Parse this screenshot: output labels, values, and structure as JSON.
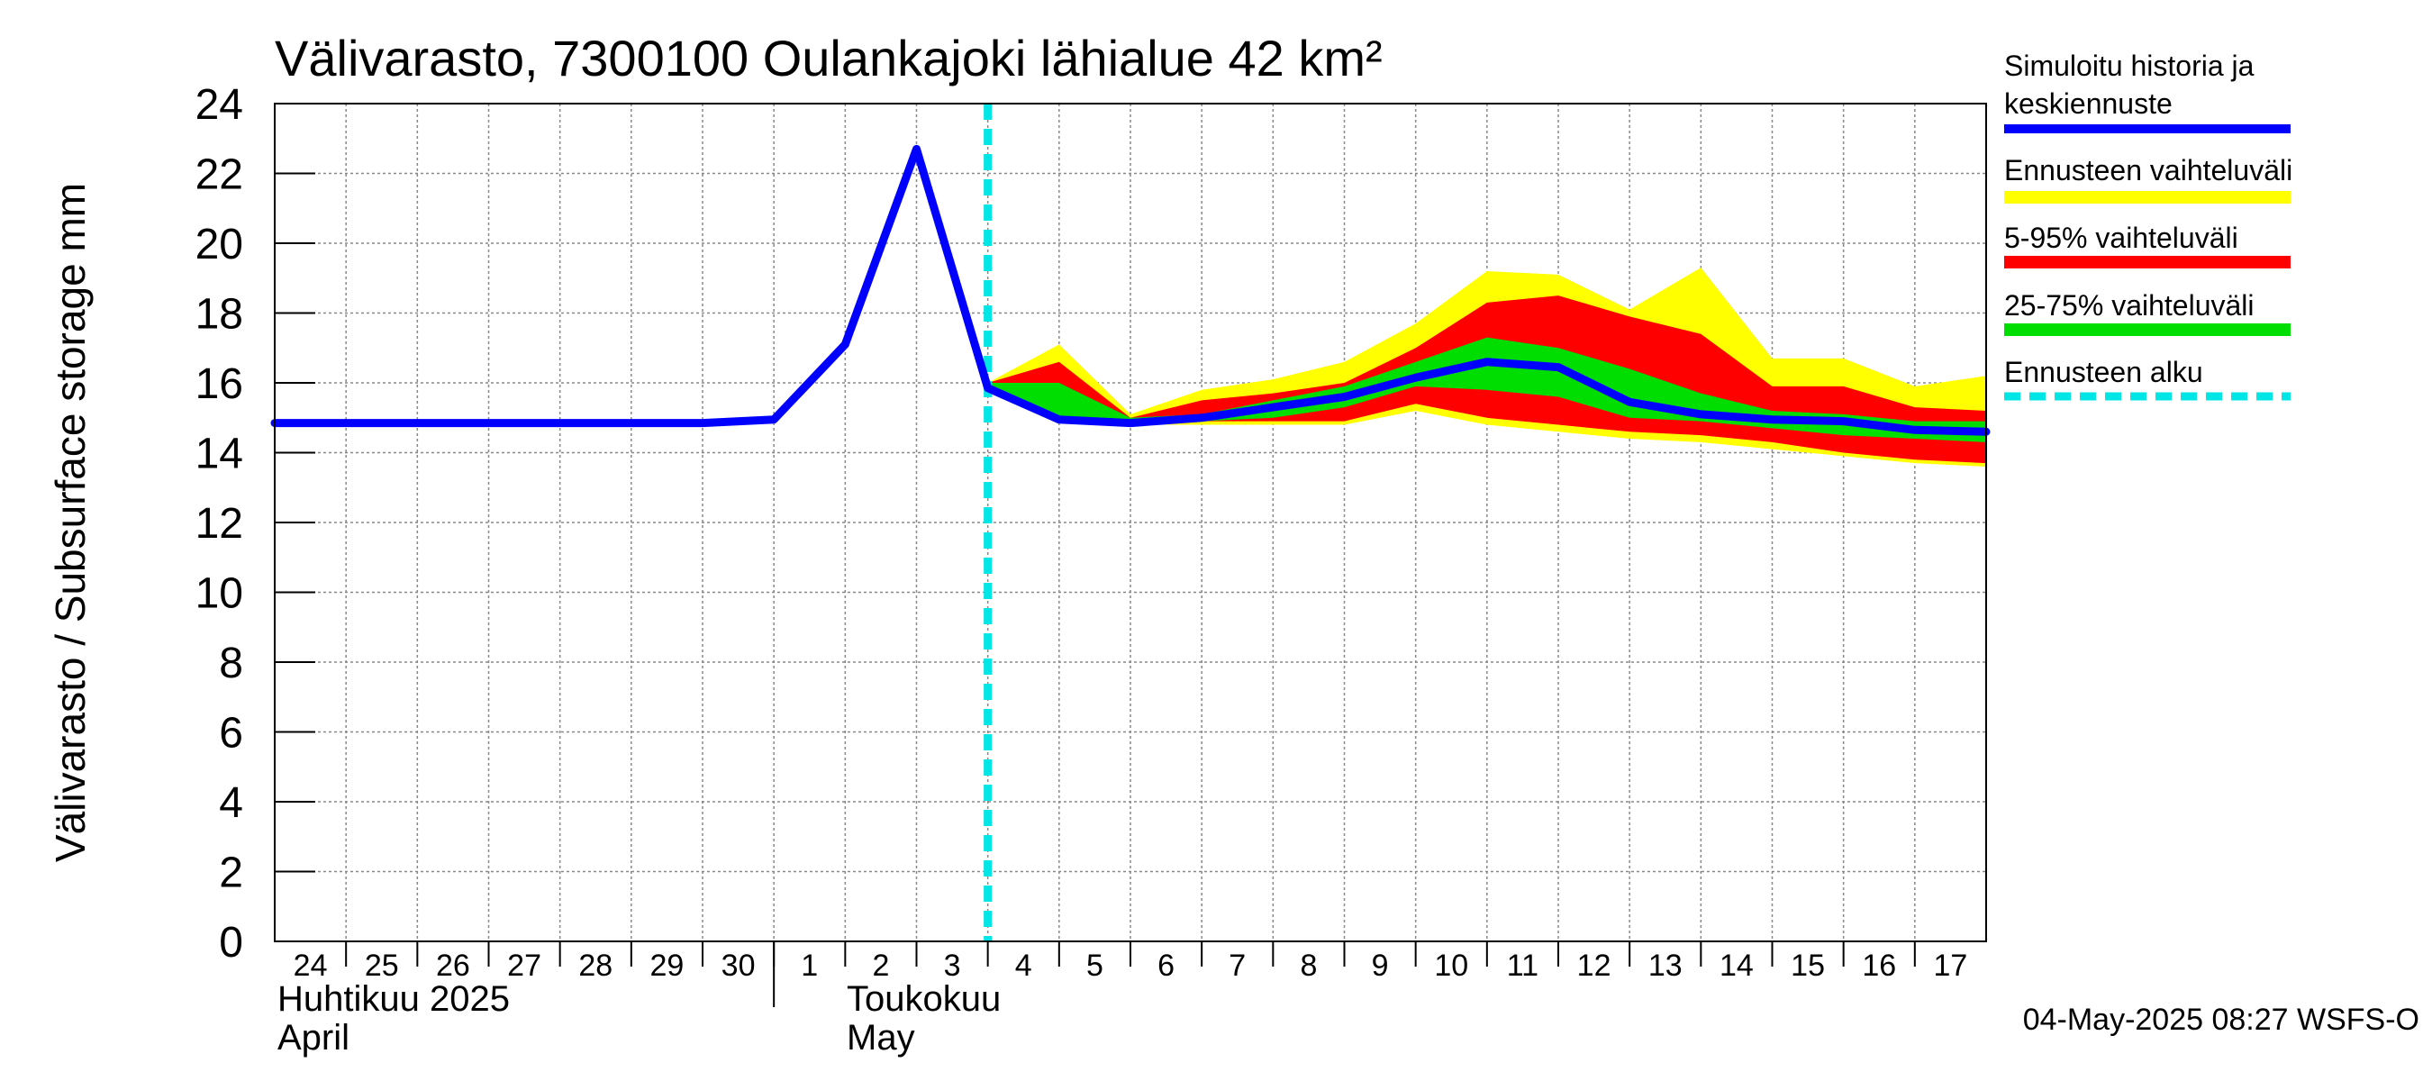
{
  "title": "Välivarasto, 7300100 Oulankajoki lähialue 42 km²",
  "timestamp": "04-May-2025 08:27 WSFS-O",
  "colors": {
    "simulated": "#0000ff",
    "full_range": "#ffff00",
    "p5_95": "#ff0000",
    "p25_75": "#00dd00",
    "forecast_start": "#00e5e5",
    "grid": "#888888"
  },
  "legend": {
    "simulated": [
      "Simuloitu historia ja",
      "keskiennuste"
    ],
    "full_range": "Ennusteen vaihteluväli",
    "p5_95": "5-95% vaihteluväli",
    "p25_75": "25-75% vaihteluväli",
    "forecast_start": "Ennusteen alku"
  },
  "x_axis": {
    "tick_labels": [
      "24",
      "25",
      "26",
      "27",
      "28",
      "29",
      "30",
      "1",
      "2",
      "3",
      "4",
      "5",
      "6",
      "7",
      "8",
      "9",
      "10",
      "11",
      "12",
      "13",
      "14",
      "15",
      "16",
      "17"
    ],
    "month_labels": [
      {
        "fi": "Huhtikuu  2025",
        "en": "April"
      },
      {
        "fi": "Toukokuu",
        "en": "May"
      }
    ]
  },
  "chart_data": {
    "type": "line",
    "title": "Välivarasto, 7300100 Oulankajoki lähialue 42 km²",
    "ylabel": "Välivarasto / Subsurface storage  mm",
    "xlabel": "",
    "ylim": [
      0,
      24
    ],
    "yticks": [
      0,
      2,
      4,
      6,
      8,
      10,
      12,
      14,
      16,
      18,
      20,
      22,
      24
    ],
    "xlim": [
      "2025-04-24",
      "2025-05-18"
    ],
    "grid": true,
    "legend_position": "right",
    "forecast_start": "2025-05-04",
    "series": [
      {
        "name": "Simuloitu historia ja keskiennuste",
        "x": [
          "2025-04-24",
          "2025-04-25",
          "2025-04-26",
          "2025-04-27",
          "2025-04-28",
          "2025-04-29",
          "2025-04-30",
          "2025-05-01",
          "2025-05-02",
          "2025-05-03",
          "2025-05-04",
          "2025-05-05",
          "2025-05-06",
          "2025-05-07",
          "2025-05-08",
          "2025-05-09",
          "2025-05-10",
          "2025-05-11",
          "2025-05-12",
          "2025-05-13",
          "2025-05-14",
          "2025-05-15",
          "2025-05-16",
          "2025-05-17",
          "2025-05-18"
        ],
        "values": [
          14.85,
          14.85,
          14.85,
          14.85,
          14.85,
          14.85,
          14.85,
          14.95,
          17.1,
          22.7,
          15.85,
          14.95,
          14.85,
          15.0,
          15.3,
          15.6,
          16.15,
          16.6,
          16.45,
          15.45,
          15.1,
          14.95,
          14.9,
          14.65,
          14.6
        ]
      }
    ],
    "bands": [
      {
        "name": "Ennusteen vaihteluväli",
        "x": [
          "2025-05-04",
          "2025-05-05",
          "2025-05-06",
          "2025-05-07",
          "2025-05-08",
          "2025-05-09",
          "2025-05-10",
          "2025-05-11",
          "2025-05-12",
          "2025-05-13",
          "2025-05-14",
          "2025-05-15",
          "2025-05-16",
          "2025-05-17",
          "2025-05-18"
        ],
        "upper": [
          16.0,
          17.1,
          15.1,
          15.8,
          16.1,
          16.6,
          17.7,
          19.2,
          19.1,
          18.1,
          19.3,
          16.7,
          16.7,
          15.9,
          16.2
        ],
        "lower": [
          15.9,
          14.9,
          14.8,
          14.8,
          14.8,
          14.8,
          15.2,
          14.8,
          14.6,
          14.4,
          14.3,
          14.1,
          13.9,
          13.7,
          13.6
        ]
      },
      {
        "name": "5-95% vaihteluväli",
        "x": [
          "2025-05-04",
          "2025-05-05",
          "2025-05-06",
          "2025-05-07",
          "2025-05-08",
          "2025-05-09",
          "2025-05-10",
          "2025-05-11",
          "2025-05-12",
          "2025-05-13",
          "2025-05-14",
          "2025-05-15",
          "2025-05-16",
          "2025-05-17",
          "2025-05-18"
        ],
        "upper": [
          16.0,
          16.6,
          15.0,
          15.5,
          15.7,
          16.0,
          17.0,
          18.3,
          18.5,
          17.9,
          17.4,
          15.9,
          15.9,
          15.3,
          15.2
        ],
        "lower": [
          15.9,
          14.9,
          14.8,
          14.9,
          14.9,
          14.9,
          15.4,
          15.0,
          14.8,
          14.6,
          14.5,
          14.3,
          14.0,
          13.8,
          13.7
        ]
      },
      {
        "name": "25-75% vaihteluväli",
        "x": [
          "2025-05-04",
          "2025-05-05",
          "2025-05-06",
          "2025-05-07",
          "2025-05-08",
          "2025-05-09",
          "2025-05-10",
          "2025-05-11",
          "2025-05-12",
          "2025-05-13",
          "2025-05-14",
          "2025-05-15",
          "2025-05-16",
          "2025-05-17",
          "2025-05-18"
        ],
        "upper": [
          16.0,
          16.0,
          15.0,
          15.1,
          15.5,
          15.9,
          16.6,
          17.3,
          17.0,
          16.4,
          15.7,
          15.2,
          15.1,
          14.9,
          14.9
        ],
        "lower": [
          15.9,
          14.9,
          14.8,
          14.9,
          15.0,
          15.3,
          15.9,
          15.8,
          15.6,
          15.0,
          14.9,
          14.7,
          14.5,
          14.4,
          14.3
        ]
      }
    ]
  }
}
